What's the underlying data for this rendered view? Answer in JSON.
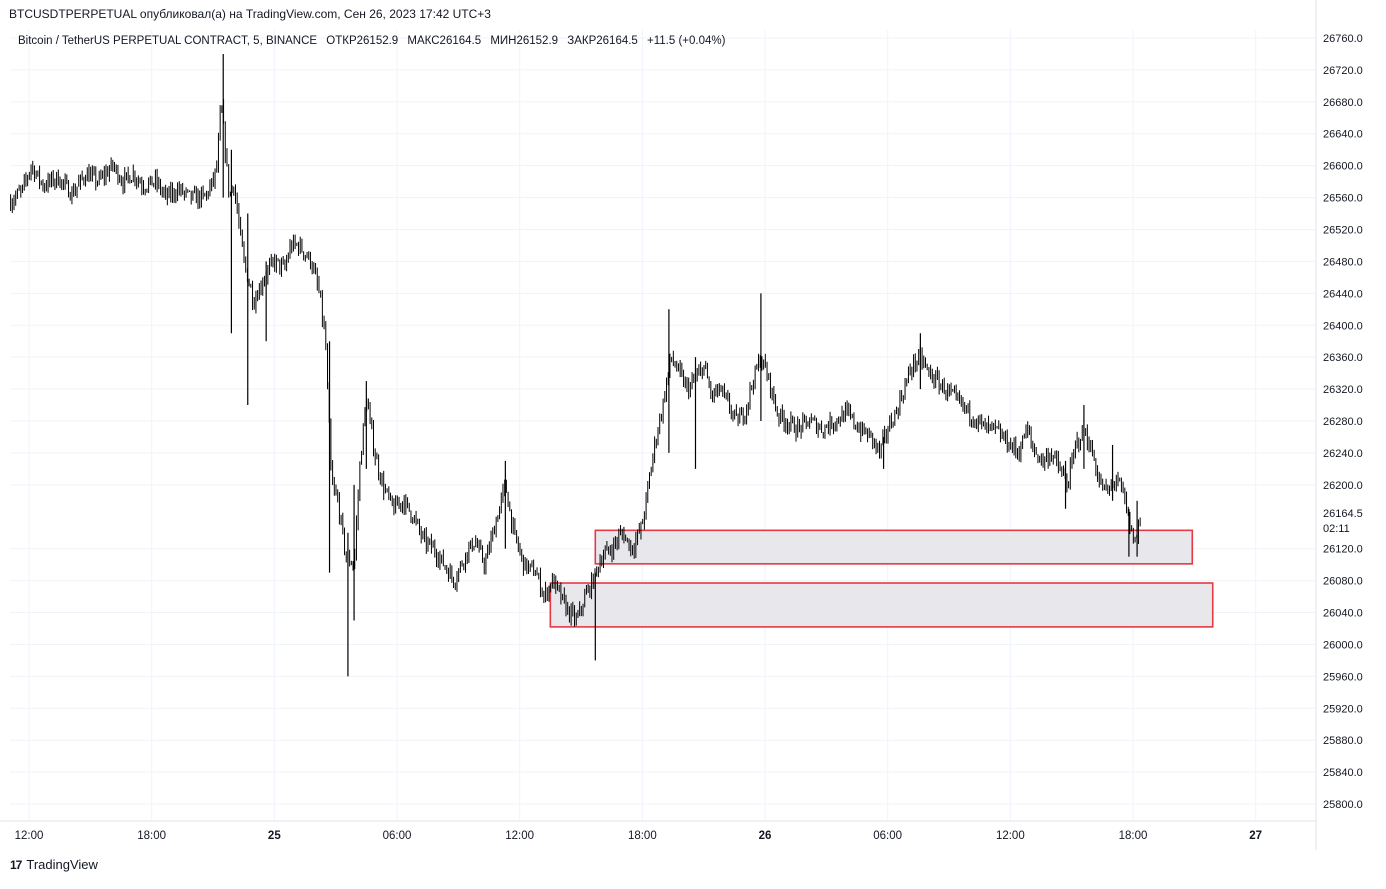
{
  "header": {
    "publish_line": "BTCUSDTPERPETUAL опубликовал(а) на TradingView.com, Сен 26, 2023 17:42 UTC+3"
  },
  "legend": {
    "symbol": "Bitcoin / TetherUS PERPETUAL CONTRACT, 5, BINANCE",
    "open": "ОТКР26152.9",
    "high": "МАКС26164.5",
    "low": "МИН26152.9",
    "close": "ЗАКР26164.5",
    "change": "+11.5 (+0.04%)"
  },
  "footer": {
    "logo_text": "TradingView",
    "logo_mark": "17"
  },
  "chart_data": {
    "type": "candlestick",
    "interval": "5",
    "grid": true,
    "y_axis": {
      "position": "right",
      "range": [
        25780,
        26770
      ],
      "ticks": [
        "26760.0",
        "26720.0",
        "26680.0",
        "26640.0",
        "26600.0",
        "26560.0",
        "26520.0",
        "26480.0",
        "26440.0",
        "26400.0",
        "26360.0",
        "26320.0",
        "26280.0",
        "26240.0",
        "26200.0",
        "26120.0",
        "26080.0",
        "26040.0",
        "26000.0",
        "25960.0",
        "25920.0",
        "25880.0",
        "25840.0",
        "25800.0"
      ],
      "tick_values": [
        26760,
        26720,
        26680,
        26640,
        26600,
        26560,
        26520,
        26480,
        26440,
        26400,
        26360,
        26320,
        26280,
        26240,
        26200,
        26120,
        26080,
        26040,
        26000,
        25960,
        25920,
        25880,
        25840,
        25800
      ]
    },
    "x_axis": {
      "range_hours": [
        -12.9,
        36.1
      ],
      "ticks": [
        "12:00",
        "18:00",
        "25",
        "06:00",
        "12:00",
        "18:00",
        "26",
        "06:00",
        "12:00",
        "18:00",
        "27"
      ],
      "tick_hours": [
        -12,
        -6,
        0,
        6,
        12,
        18,
        24,
        30,
        36,
        42,
        48
      ],
      "bold_ticks": [
        "25",
        "26",
        "27"
      ]
    },
    "last_price": {
      "value": 26164.5,
      "label": "26164.5",
      "countdown": "02:11"
    },
    "path": [
      [
        -12.9,
        26555
      ],
      [
        -12.3,
        26570
      ],
      [
        -11.9,
        26600
      ],
      [
        -11.3,
        26575
      ],
      [
        -10.6,
        26585
      ],
      [
        -9.9,
        26565
      ],
      [
        -9.2,
        26590
      ],
      [
        -8.6,
        26580
      ],
      [
        -7.9,
        26600
      ],
      [
        -7.4,
        26580
      ],
      [
        -6.9,
        26590
      ],
      [
        -6.4,
        26575
      ],
      [
        -5.8,
        26580
      ],
      [
        -5.3,
        26560
      ],
      [
        -4.7,
        26570
      ],
      [
        -4.1,
        26560
      ],
      [
        -3.4,
        26560
      ],
      [
        -3.0,
        26580
      ],
      [
        -2.8,
        26600
      ],
      [
        -2.6,
        26680
      ],
      [
        -2.4,
        26620
      ],
      [
        -2.2,
        26560
      ],
      [
        -2.0,
        26580
      ],
      [
        -1.8,
        26540
      ],
      [
        -1.5,
        26480
      ],
      [
        -1.0,
        26430
      ],
      [
        -0.5,
        26460
      ],
      [
        0.0,
        26480
      ],
      [
        0.5,
        26470
      ],
      [
        0.8,
        26500
      ],
      [
        1.2,
        26500
      ],
      [
        1.8,
        26480
      ],
      [
        2.2,
        26440
      ],
      [
        2.5,
        26380
      ],
      [
        2.8,
        26200
      ],
      [
        3.1,
        26180
      ],
      [
        3.5,
        26110
      ],
      [
        3.9,
        26100
      ],
      [
        4.2,
        26230
      ],
      [
        4.5,
        26310
      ],
      [
        4.9,
        26240
      ],
      [
        5.3,
        26200
      ],
      [
        5.8,
        26170
      ],
      [
        6.3,
        26180
      ],
      [
        6.8,
        26160
      ],
      [
        7.3,
        26130
      ],
      [
        7.8,
        26120
      ],
      [
        8.3,
        26100
      ],
      [
        8.8,
        26080
      ],
      [
        9.3,
        26110
      ],
      [
        9.8,
        26130
      ],
      [
        10.3,
        26100
      ],
      [
        10.8,
        26150
      ],
      [
        11.3,
        26200
      ],
      [
        11.7,
        26140
      ],
      [
        12.2,
        26100
      ],
      [
        12.8,
        26090
      ],
      [
        13.2,
        26060
      ],
      [
        13.6,
        26080
      ],
      [
        14.0,
        26060
      ],
      [
        14.4,
        26040
      ],
      [
        14.8,
        26030
      ],
      [
        15.2,
        26060
      ],
      [
        15.6,
        26080
      ],
      [
        16.0,
        26110
      ],
      [
        16.5,
        26120
      ],
      [
        17.0,
        26140
      ],
      [
        17.5,
        26120
      ],
      [
        18.0,
        26150
      ],
      [
        18.3,
        26200
      ],
      [
        18.6,
        26250
      ],
      [
        19.0,
        26300
      ],
      [
        19.4,
        26360
      ],
      [
        19.8,
        26340
      ],
      [
        20.2,
        26320
      ],
      [
        20.6,
        26330
      ],
      [
        21.0,
        26350
      ],
      [
        21.4,
        26310
      ],
      [
        21.8,
        26320
      ],
      [
        22.2,
        26300
      ],
      [
        22.6,
        26280
      ],
      [
        23.0,
        26290
      ],
      [
        23.4,
        26330
      ],
      [
        23.8,
        26360
      ],
      [
        24.2,
        26330
      ],
      [
        24.6,
        26290
      ],
      [
        25.0,
        26280
      ],
      [
        25.6,
        26270
      ],
      [
        26.2,
        26280
      ],
      [
        26.8,
        26270
      ],
      [
        27.4,
        26280
      ],
      [
        28.0,
        26290
      ],
      [
        28.6,
        26270
      ],
      [
        29.2,
        26260
      ],
      [
        29.6,
        26240
      ],
      [
        30.0,
        26270
      ],
      [
        30.4,
        26290
      ],
      [
        30.8,
        26320
      ],
      [
        31.2,
        26350
      ],
      [
        31.6,
        26360
      ],
      [
        32.0,
        26340
      ],
      [
        32.4,
        26330
      ],
      [
        32.8,
        26320
      ],
      [
        33.2,
        26310
      ],
      [
        33.6,
        26300
      ],
      [
        34.0,
        26290
      ],
      [
        34.4,
        26280
      ],
      [
        34.8,
        26270
      ],
      [
        35.2,
        26270
      ],
      [
        35.6,
        26260
      ],
      [
        36.0,
        26250
      ],
      [
        36.4,
        26240
      ],
      [
        36.8,
        26270
      ],
      [
        37.2,
        26240
      ],
      [
        37.6,
        26230
      ],
      [
        38.0,
        26240
      ],
      [
        38.4,
        26220
      ],
      [
        38.8,
        26200
      ],
      [
        39.2,
        26250
      ],
      [
        39.6,
        26270
      ],
      [
        40.0,
        26240
      ],
      [
        40.4,
        26200
      ],
      [
        40.8,
        26190
      ],
      [
        41.2,
        26210
      ],
      [
        41.6,
        26180
      ],
      [
        41.9,
        26140
      ],
      [
        42.1,
        26130
      ],
      [
        42.3,
        26150
      ],
      [
        42.4,
        26164.5
      ]
    ],
    "spikes": [
      {
        "x": -2.5,
        "high": 26740,
        "low": 26560
      },
      {
        "x": -2.1,
        "high": 26620,
        "low": 26390
      },
      {
        "x": -1.3,
        "high": 26540,
        "low": 26300
      },
      {
        "x": -0.4,
        "high": 26480,
        "low": 26380
      },
      {
        "x": 2.7,
        "high": 26380,
        "low": 26090
      },
      {
        "x": 3.6,
        "high": 26140,
        "low": 25960
      },
      {
        "x": 3.9,
        "high": 26200,
        "low": 26030
      },
      {
        "x": 4.5,
        "high": 26330,
        "low": 26220
      },
      {
        "x": 11.3,
        "high": 26230,
        "low": 26120
      },
      {
        "x": 15.7,
        "high": 26090,
        "low": 25980
      },
      {
        "x": 19.3,
        "high": 26420,
        "low": 26240
      },
      {
        "x": 20.6,
        "high": 26360,
        "low": 26220
      },
      {
        "x": 23.8,
        "high": 26440,
        "low": 26280
      },
      {
        "x": 29.8,
        "high": 26260,
        "low": 26220
      },
      {
        "x": 31.6,
        "high": 26390,
        "low": 26320
      },
      {
        "x": 38.7,
        "high": 26230,
        "low": 26170
      },
      {
        "x": 39.6,
        "high": 26300,
        "low": 26220
      },
      {
        "x": 41.0,
        "high": 26250,
        "low": 26180
      },
      {
        "x": 41.8,
        "high": 26170,
        "low": 26110
      },
      {
        "x": 42.2,
        "high": 26180,
        "low": 26110
      }
    ],
    "zones": [
      {
        "x_start": 15.7,
        "x_end": 44.9,
        "high": 26143,
        "low": 26101,
        "border": "#e53945",
        "fill": "#e8e8ec"
      },
      {
        "x_start": 13.5,
        "x_end": 45.9,
        "high": 26077,
        "low": 26022,
        "border": "#e53945",
        "fill": "#e8e8ec"
      }
    ],
    "colors": {
      "candles": "#000000",
      "grid": "#f0f3fa",
      "axis_text": "#131722",
      "zone_border": "#e53945",
      "zone_fill": "#e8e8ec"
    }
  }
}
